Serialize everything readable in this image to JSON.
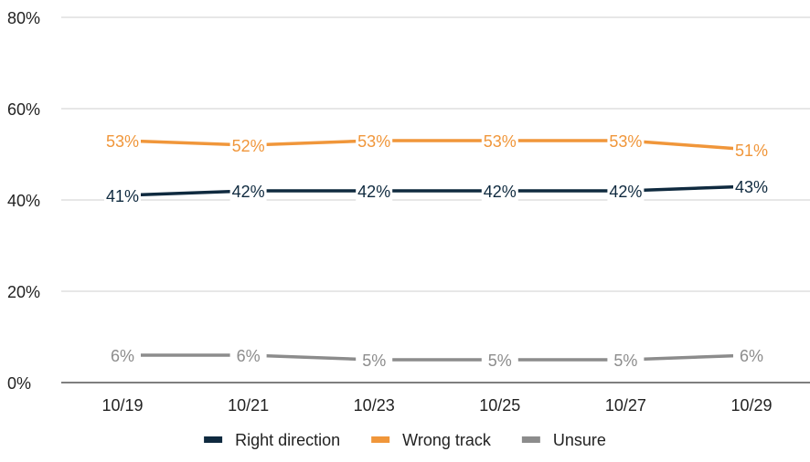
{
  "chart_data": {
    "type": "line",
    "x": [
      "10/19",
      "10/21",
      "10/23",
      "10/25",
      "10/27",
      "10/29"
    ],
    "ylim": [
      0,
      80
    ],
    "yticks": [
      0,
      20,
      40,
      60,
      80
    ],
    "ytick_labels": [
      "0%",
      "20%",
      "40%",
      "60%",
      "80%"
    ],
    "title": "",
    "xlabel": "",
    "ylabel": "",
    "grid": "horizontal",
    "legend_position": "bottom",
    "series": [
      {
        "name": "Right direction",
        "color": "#0f2a3f",
        "values": [
          41,
          42,
          42,
          42,
          42,
          43
        ],
        "labels": [
          "41%",
          "42%",
          "42%",
          "42%",
          "42%",
          "43%"
        ]
      },
      {
        "name": "Wrong track",
        "color": "#f0963a",
        "values": [
          53,
          52,
          53,
          53,
          53,
          51
        ],
        "labels": [
          "53%",
          "52%",
          "53%",
          "53%",
          "53%",
          "51%"
        ]
      },
      {
        "name": "Unsure",
        "color": "#8c8c8c",
        "values": [
          6,
          6,
          5,
          5,
          5,
          6
        ],
        "labels": [
          "6%",
          "6%",
          "5%",
          "5%",
          "5%",
          "6%"
        ]
      }
    ]
  }
}
